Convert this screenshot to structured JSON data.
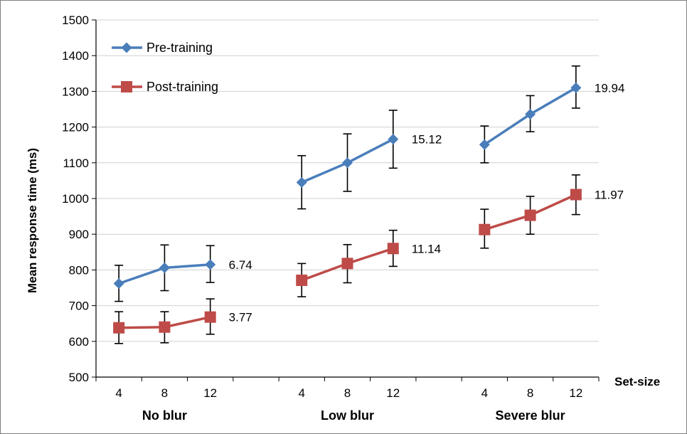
{
  "chart_data": {
    "type": "line",
    "ylabel": "Mean response time (ms)",
    "xlabel": "Set-size",
    "ylim": [
      500,
      1500
    ],
    "yticks": [
      500,
      600,
      700,
      800,
      900,
      1000,
      1100,
      1200,
      1300,
      1400,
      1500
    ],
    "grid": true,
    "legend_position": "top-left",
    "groups": [
      {
        "label": "No blur",
        "x": [
          "4",
          "8",
          "12"
        ],
        "series": [
          {
            "name": "Pre-training",
            "values": [
              762,
              806,
              815
            ],
            "err_low": [
              712,
              742,
              765
            ],
            "err_high": [
              813,
              870,
              868
            ],
            "label": "6.74"
          },
          {
            "name": "Post-training",
            "values": [
              638,
              640,
              668
            ],
            "err_low": [
              594,
              596,
              620
            ],
            "err_high": [
              683,
              683,
              719
            ],
            "label": "3.77"
          }
        ]
      },
      {
        "label": "Low blur",
        "x": [
          "4",
          "8",
          "12"
        ],
        "series": [
          {
            "name": "Pre-training",
            "values": [
              1045,
              1100,
              1166
            ],
            "err_low": [
              971,
              1020,
              1085
            ],
            "err_high": [
              1120,
              1181,
              1247
            ],
            "label": "15.12"
          },
          {
            "name": "Post-training",
            "values": [
              771,
              818,
              860
            ],
            "err_low": [
              725,
              764,
              810
            ],
            "err_high": [
              818,
              871,
              911
            ],
            "label": "11.14"
          }
        ]
      },
      {
        "label": "Severe blur",
        "x": [
          "4",
          "8",
          "12"
        ],
        "series": [
          {
            "name": "Pre-training",
            "values": [
              1151,
              1236,
              1310
            ],
            "err_low": [
              1100,
              1187,
              1253
            ],
            "err_high": [
              1203,
              1288,
              1371
            ],
            "label": "19.94"
          },
          {
            "name": "Post-training",
            "values": [
              913,
              953,
              1011
            ],
            "err_low": [
              861,
              900,
              955
            ],
            "err_high": [
              970,
              1006,
              1066
            ],
            "label": "11.97"
          }
        ]
      }
    ],
    "series_styles": [
      {
        "name": "Pre-training",
        "color": "#4a7ebb",
        "marker": "diamond"
      },
      {
        "name": "Post-training",
        "color": "#be4b48",
        "marker": "square"
      }
    ]
  }
}
